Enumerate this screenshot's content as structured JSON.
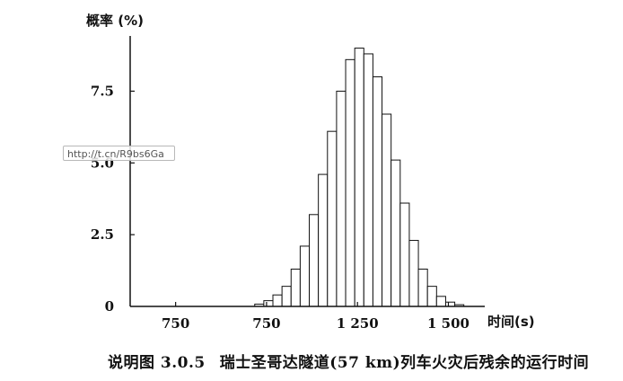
{
  "caption": {
    "number": "说明图 3.0.5",
    "text": "瑞士圣哥达隧道(57 km)列车火灾后残余的运行时间"
  },
  "watermark": "http://t.cn/R9bs6Ga",
  "chart_data": {
    "type": "bar",
    "ylabel": "概率 (%)",
    "xlabel": "时间(s)",
    "x_tick_labels": [
      "750",
      "750",
      "1 250",
      "1 500"
    ],
    "y_tick_labels": [
      "0",
      "2.5",
      "5.0",
      "7.5"
    ],
    "y_ticks": [
      0,
      2.5,
      5.0,
      7.5
    ],
    "ylim": [
      0,
      9.8
    ],
    "bin_width": 25,
    "x_range": [
      625,
      1600
    ],
    "grid": false,
    "bars": [
      {
        "x": 980,
        "value": 0.08
      },
      {
        "x": 1005,
        "value": 0.2
      },
      {
        "x": 1030,
        "value": 0.4
      },
      {
        "x": 1055,
        "value": 0.7
      },
      {
        "x": 1080,
        "value": 1.3
      },
      {
        "x": 1105,
        "value": 2.1
      },
      {
        "x": 1130,
        "value": 3.2
      },
      {
        "x": 1155,
        "value": 4.6
      },
      {
        "x": 1180,
        "value": 6.1
      },
      {
        "x": 1205,
        "value": 7.5
      },
      {
        "x": 1230,
        "value": 8.6
      },
      {
        "x": 1255,
        "value": 9.0
      },
      {
        "x": 1280,
        "value": 8.8
      },
      {
        "x": 1305,
        "value": 8.0
      },
      {
        "x": 1330,
        "value": 6.7
      },
      {
        "x": 1355,
        "value": 5.1
      },
      {
        "x": 1380,
        "value": 3.6
      },
      {
        "x": 1405,
        "value": 2.3
      },
      {
        "x": 1430,
        "value": 1.3
      },
      {
        "x": 1455,
        "value": 0.7
      },
      {
        "x": 1480,
        "value": 0.35
      },
      {
        "x": 1505,
        "value": 0.15
      },
      {
        "x": 1530,
        "value": 0.06
      }
    ]
  }
}
